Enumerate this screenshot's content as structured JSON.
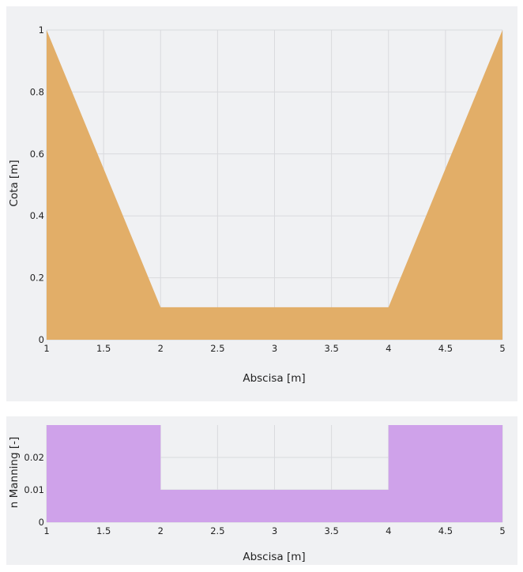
{
  "colors": {
    "panel_background": "#f0f1f3",
    "grid": "#d9dade",
    "cross_section_fill": "#e2ae68",
    "manning_fill": "#cfa2ea"
  },
  "chart_data": [
    {
      "type": "area",
      "title": "",
      "xlabel": "Abscisa [m]",
      "ylabel": "Cota [m]",
      "x": [
        1,
        2,
        4,
        5
      ],
      "y": [
        1,
        0.105,
        0.105,
        1
      ],
      "xlim": [
        1,
        5
      ],
      "ylim": [
        0,
        1
      ],
      "xticks": [
        "1",
        "1.5",
        "2",
        "2.5",
        "3",
        "3.5",
        "4",
        "4.5",
        "5"
      ],
      "yticks": [
        "0",
        "0.2",
        "0.4",
        "0.6",
        "0.8",
        "1"
      ],
      "grid": true,
      "color": "#e2ae68"
    },
    {
      "type": "area",
      "title": "",
      "xlabel": "Abscisa [m]",
      "ylabel": "n Manning [-]",
      "x": [
        1,
        2,
        2,
        4,
        4,
        5
      ],
      "y": [
        0.03,
        0.03,
        0.01,
        0.01,
        0.03,
        0.03
      ],
      "xlim": [
        1,
        5
      ],
      "ylim": [
        0,
        0.03
      ],
      "xticks": [
        "1",
        "1.5",
        "2",
        "2.5",
        "3",
        "3.5",
        "4",
        "4.5",
        "5"
      ],
      "yticks": [
        "0",
        "0.01",
        "0.02"
      ],
      "grid": true,
      "color": "#cfa2ea"
    }
  ]
}
